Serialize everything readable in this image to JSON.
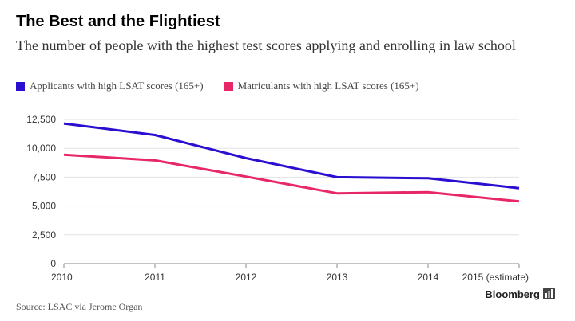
{
  "title": "The Best and the Flightiest",
  "subtitle": "The number of people with the highest test scores applying and enrolling in law school",
  "source": "Source: LSAC via Jerome Organ",
  "brand": "Bloomberg",
  "chart_data": {
    "type": "line",
    "x": [
      "2010",
      "2011",
      "2012",
      "2013",
      "2014",
      "2015 (estimate)"
    ],
    "series": [
      {
        "name": "Applicants with high LSAT scores (165+)",
        "color": "#2a0fd0",
        "values": [
          12150,
          11150,
          9150,
          7500,
          7400,
          6550
        ]
      },
      {
        "name": "Matriculants with high LSAT scores (165+)",
        "color": "#e8266a",
        "values": [
          9450,
          8950,
          7550,
          6100,
          6200,
          5400
        ]
      }
    ],
    "y_ticks": [
      "0",
      "2,500",
      "5,000",
      "7,500",
      "10,000",
      "12,500"
    ],
    "ylim": [
      0,
      12500
    ],
    "grid": true,
    "legend": "top-left"
  }
}
